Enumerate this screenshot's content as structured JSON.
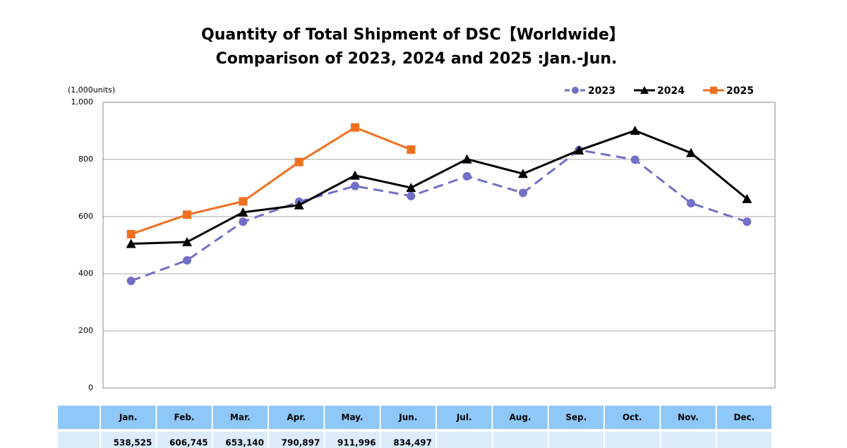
{
  "chart_data": {
    "type": "line",
    "title": "Quantity of Total Shipment of DSC【Worldwide】",
    "subtitle": "Comparison of 2023, 2024 and 2025 :Jan.-Jun.",
    "y_axis_label": "(1,000units)",
    "categories": [
      "Jan.",
      "Feb.",
      "Mar.",
      "Apr.",
      "May.",
      "Jun.",
      "Jul.",
      "Aug.",
      "Sep.",
      "Oct.",
      "Nov.",
      "Dec."
    ],
    "ylim": [
      0,
      1000
    ],
    "yticks": [
      0,
      200,
      400,
      600,
      800,
      {
        "value": 1000,
        "label": "1,000"
      }
    ],
    "grid": true,
    "legend": "top-right",
    "series": [
      {
        "name": "2023",
        "color": "#7070c8",
        "marker": "circle",
        "dashed": true,
        "values": [
          375,
          447,
          582,
          652,
          707,
          672,
          741,
          683,
          833,
          799,
          647,
          582
        ]
      },
      {
        "name": "2024",
        "color": "#000000",
        "marker": "triangle",
        "dashed": false,
        "values": [
          505,
          511,
          615,
          640,
          744,
          701,
          801,
          750,
          832,
          901,
          823,
          662
        ]
      },
      {
        "name": "2025",
        "color": "#f07020",
        "marker": "square",
        "dashed": false,
        "values": [
          538.525,
          606.745,
          653.14,
          790.897,
          911.996,
          834.497,
          null,
          null,
          null,
          null,
          null,
          null
        ],
        "value_labels": [
          "538,525",
          "606,745",
          "653,140",
          "790,897",
          "911,996",
          "834,497",
          null,
          null,
          null,
          null,
          null,
          null
        ]
      }
    ]
  }
}
